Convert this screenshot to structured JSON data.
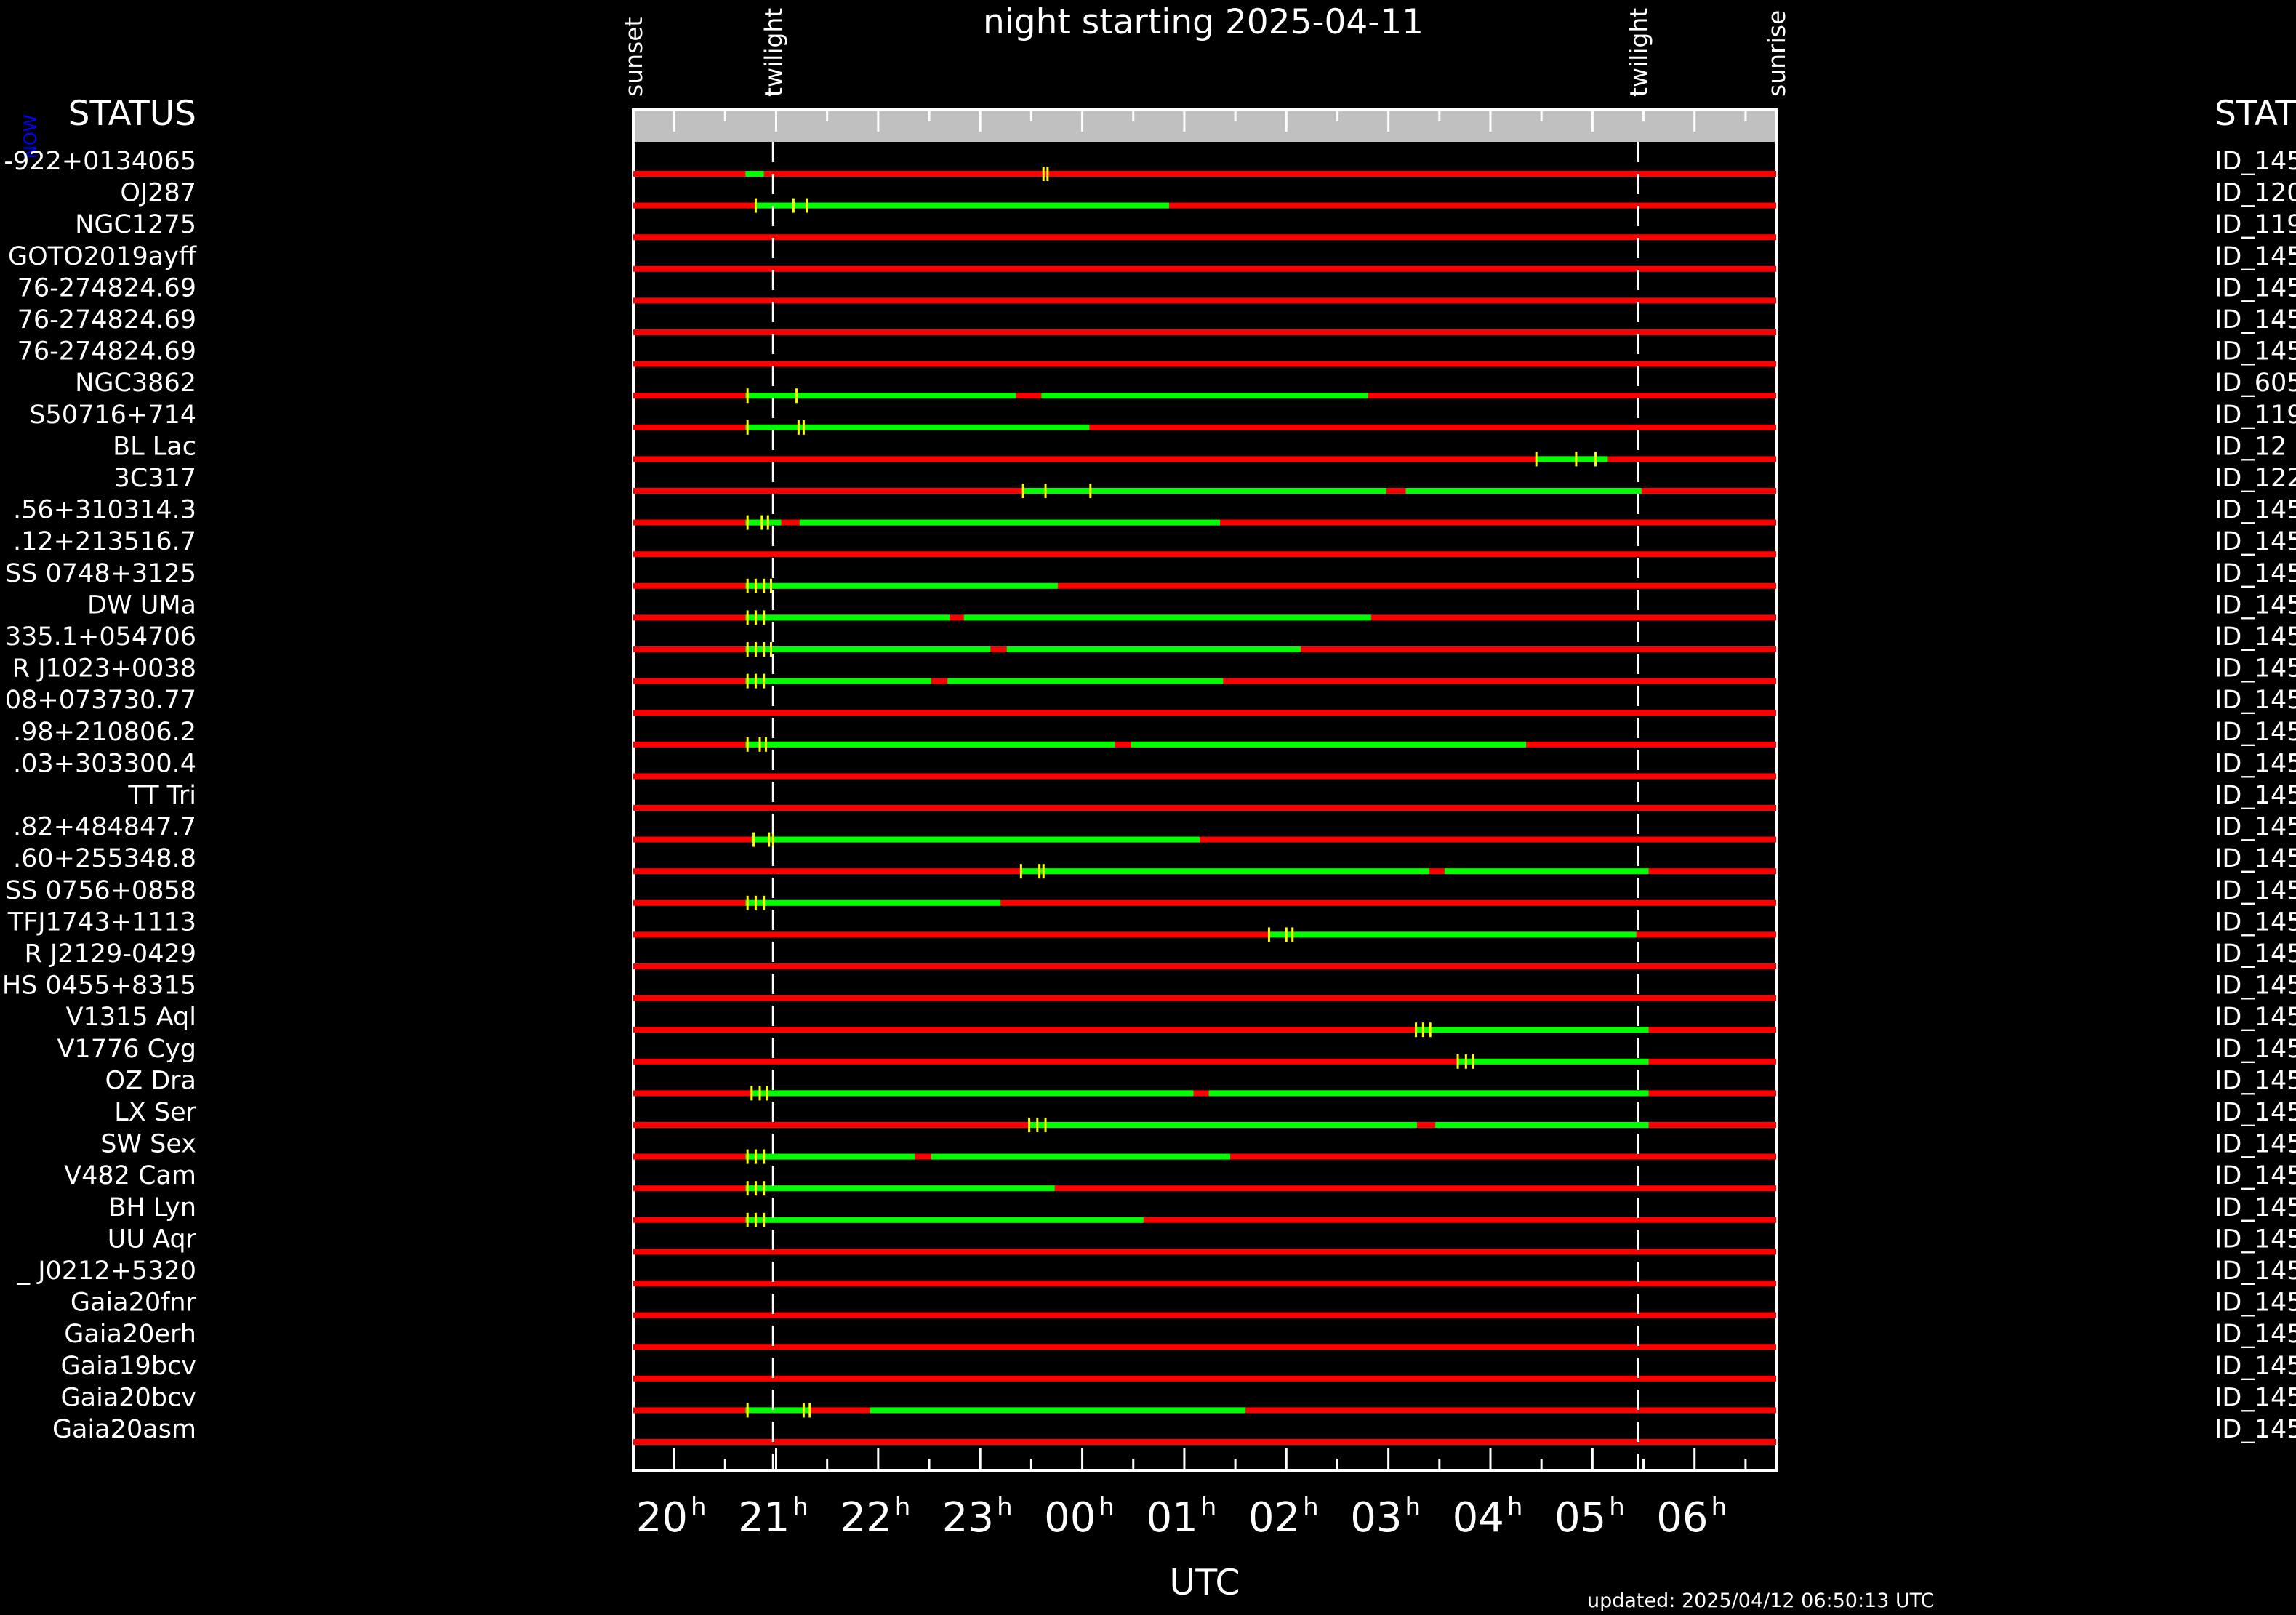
{
  "page": {
    "night_title": "night starting 2025-04-11",
    "status_left": "STATUS",
    "status_right": "STAT",
    "now_marker": "NOW",
    "updated": "updated: 2025/04/12 06:50:13 UTC",
    "colors": {
      "background": "#000000",
      "not_observable": "#ff0000",
      "observable": "#00ff00",
      "tick_mark": "#ffff00",
      "frame": "#ffffff",
      "top_band": "#c0c0c0",
      "now_marker": "#0000ff"
    }
  },
  "chart_data": {
    "type": "timeline",
    "title": "night starting 2025-04-11",
    "xlabel": "UTC",
    "xunit": "hours UTC (values >24 are after midnight)",
    "xlim": [
      19.6,
      30.8
    ],
    "xticks": [
      {
        "v": 20,
        "label": "20"
      },
      {
        "v": 21,
        "label": "21"
      },
      {
        "v": 22,
        "label": "22"
      },
      {
        "v": 23,
        "label": "23"
      },
      {
        "v": 24,
        "label": "00"
      },
      {
        "v": 25,
        "label": "01"
      },
      {
        "v": 26,
        "label": "02"
      },
      {
        "v": 27,
        "label": "03"
      },
      {
        "v": 28,
        "label": "04"
      },
      {
        "v": 29,
        "label": "05"
      },
      {
        "v": 30,
        "label": "06"
      }
    ],
    "hour_suffix": "h",
    "sun_events": [
      {
        "label": "sunset",
        "v": 19.6
      },
      {
        "label": "twilight",
        "v": 20.97
      },
      {
        "label": "twilight",
        "v": 29.45
      },
      {
        "label": "sunrise",
        "v": 30.8
      }
    ],
    "targets": [
      {
        "name": "-922+0134065",
        "id": "ID_145",
        "green": [
          [
            20.7,
            20.88
          ]
        ],
        "ticks": [
          23.62,
          23.66
        ]
      },
      {
        "name": "OJ287",
        "id": "ID_120",
        "green": [
          [
            20.8,
            24.85
          ]
        ],
        "ticks": [
          20.8,
          21.17,
          21.3
        ]
      },
      {
        "name": "NGC1275",
        "id": "ID_119",
        "green": [],
        "ticks": []
      },
      {
        "name": "GOTO2019ayff",
        "id": "ID_145",
        "green": [],
        "ticks": []
      },
      {
        "name": "76-274824.69",
        "id": "ID_145",
        "green": [],
        "ticks": []
      },
      {
        "name": "76-274824.69",
        "id": "ID_145",
        "green": [],
        "ticks": []
      },
      {
        "name": "76-274824.69",
        "id": "ID_145",
        "green": [],
        "ticks": []
      },
      {
        "name": "NGC3862",
        "id": "ID_605",
        "green": [
          [
            20.7,
            23.35
          ],
          [
            23.6,
            26.8
          ]
        ],
        "ticks": [
          20.72,
          21.2
        ]
      },
      {
        "name": "S50716+714",
        "id": "ID_119",
        "green": [
          [
            20.7,
            24.07
          ]
        ],
        "ticks": [
          20.72,
          21.22,
          21.27
        ]
      },
      {
        "name": "BL Lac",
        "id": "ID_12",
        "green": [
          [
            28.45,
            29.15
          ]
        ],
        "ticks": [
          28.45,
          28.84,
          29.03
        ]
      },
      {
        "name": "3C317",
        "id": "ID_122",
        "green": [
          [
            23.42,
            26.98
          ],
          [
            27.17,
            29.48
          ]
        ],
        "ticks": [
          23.42,
          23.64,
          24.08
        ]
      },
      {
        "name": ".56+310314.3",
        "id": "ID_145",
        "green": [
          [
            20.7,
            21.05
          ],
          [
            21.23,
            25.35
          ]
        ],
        "ticks": [
          20.72,
          20.86,
          20.92
        ]
      },
      {
        "name": ".12+213516.7",
        "id": "ID_145",
        "green": [],
        "ticks": []
      },
      {
        "name": "SS 0748+3125",
        "id": "ID_145",
        "green": [
          [
            20.7,
            23.76
          ]
        ],
        "ticks": [
          20.72,
          20.8,
          20.88,
          20.95
        ]
      },
      {
        "name": "DW UMa",
        "id": "ID_145",
        "green": [
          [
            20.7,
            22.7
          ],
          [
            22.84,
            26.83
          ]
        ],
        "ticks": [
          20.72,
          20.8,
          20.88
        ]
      },
      {
        "name": "335.1+054706",
        "id": "ID_145",
        "green": [
          [
            20.7,
            23.1
          ],
          [
            23.26,
            26.14
          ]
        ],
        "ticks": [
          20.72,
          20.8,
          20.88,
          20.95
        ]
      },
      {
        "name": "R J1023+0038",
        "id": "ID_145",
        "green": [
          [
            20.7,
            22.52
          ],
          [
            22.68,
            25.38
          ]
        ],
        "ticks": [
          20.72,
          20.8,
          20.88
        ]
      },
      {
        "name": "08+073730.77",
        "id": "ID_145",
        "green": [],
        "ticks": []
      },
      {
        "name": ".98+210806.2",
        "id": "ID_145",
        "green": [
          [
            20.7,
            24.32
          ],
          [
            24.48,
            28.35
          ]
        ],
        "ticks": [
          20.72,
          20.84,
          20.9
        ]
      },
      {
        "name": ".03+303300.4",
        "id": "ID_145",
        "green": [],
        "ticks": []
      },
      {
        "name": "TT Tri",
        "id": "ID_145",
        "green": [],
        "ticks": []
      },
      {
        "name": ".82+484847.7",
        "id": "ID_145",
        "green": [
          [
            20.76,
            25.15
          ]
        ],
        "ticks": [
          20.78,
          20.93,
          20.97
        ]
      },
      {
        "name": ".60+255348.8",
        "id": "ID_145",
        "green": [
          [
            23.4,
            27.4
          ],
          [
            27.55,
            29.55
          ]
        ],
        "ticks": [
          23.4,
          23.58,
          23.62
        ]
      },
      {
        "name": "SS 0756+0858",
        "id": "ID_145",
        "green": [
          [
            20.7,
            23.2
          ]
        ],
        "ticks": [
          20.72,
          20.8,
          20.88
        ]
      },
      {
        "name": "TFJ1743+1113",
        "id": "ID_145",
        "green": [
          [
            25.83,
            29.43
          ]
        ],
        "ticks": [
          25.83,
          26.0,
          26.06
        ]
      },
      {
        "name": "R J2129-0429",
        "id": "ID_145",
        "green": [],
        "ticks": []
      },
      {
        "name": "HS 0455+8315",
        "id": "ID_145",
        "green": [],
        "ticks": []
      },
      {
        "name": "V1315 Aql",
        "id": "ID_145",
        "green": [
          [
            27.27,
            29.55
          ]
        ],
        "ticks": [
          27.27,
          27.34,
          27.41
        ]
      },
      {
        "name": "V1776 Cyg",
        "id": "ID_145",
        "green": [
          [
            27.68,
            29.55
          ]
        ],
        "ticks": [
          27.68,
          27.76,
          27.83
        ]
      },
      {
        "name": "OZ Dra",
        "id": "ID_145",
        "green": [
          [
            20.76,
            25.09
          ],
          [
            25.24,
            29.55
          ]
        ],
        "ticks": [
          20.76,
          20.84,
          20.91
        ]
      },
      {
        "name": "LX Ser",
        "id": "ID_145",
        "green": [
          [
            23.48,
            27.28
          ],
          [
            27.46,
            29.55
          ]
        ],
        "ticks": [
          23.48,
          23.56,
          23.64
        ]
      },
      {
        "name": "SW Sex",
        "id": "ID_145",
        "green": [
          [
            20.7,
            22.36
          ],
          [
            22.52,
            25.45
          ]
        ],
        "ticks": [
          20.72,
          20.8,
          20.88
        ]
      },
      {
        "name": "V482 Cam",
        "id": "ID_145",
        "green": [
          [
            20.7,
            23.73
          ]
        ],
        "ticks": [
          20.72,
          20.8,
          20.88
        ]
      },
      {
        "name": "BH Lyn",
        "id": "ID_145",
        "green": [
          [
            20.7,
            24.6
          ]
        ],
        "ticks": [
          20.72,
          20.8,
          20.88
        ]
      },
      {
        "name": "UU Aqr",
        "id": "ID_145",
        "green": [],
        "ticks": []
      },
      {
        "name": "_ J0212+5320",
        "id": "ID_145",
        "green": [],
        "ticks": []
      },
      {
        "name": "Gaia20fnr",
        "id": "ID_145",
        "green": [],
        "ticks": []
      },
      {
        "name": "Gaia20erh",
        "id": "ID_145",
        "green": [],
        "ticks": []
      },
      {
        "name": "Gaia19bcv",
        "id": "ID_145",
        "green": [],
        "ticks": []
      },
      {
        "name": "Gaia20bcv",
        "id": "ID_145",
        "green": [
          [
            20.7,
            21.33
          ],
          [
            21.92,
            25.6
          ]
        ],
        "ticks": [
          20.72,
          21.27,
          21.33
        ]
      },
      {
        "name": "Gaia20asm",
        "id": "ID_145",
        "green": [],
        "ticks": []
      }
    ]
  }
}
